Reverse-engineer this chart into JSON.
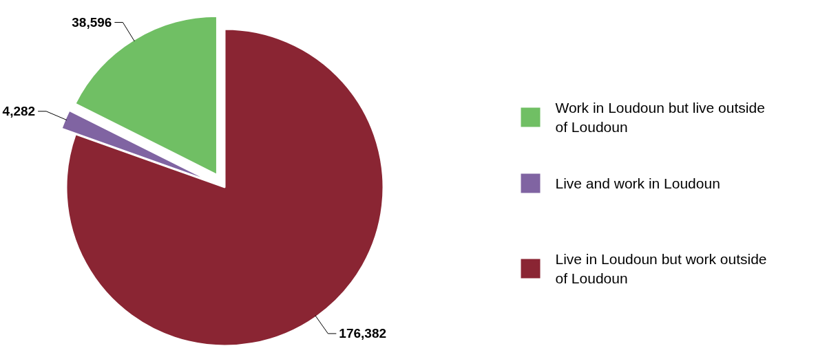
{
  "chart_data": {
    "type": "pie",
    "categories": [
      "Work in Loudoun but live outside of Loudoun",
      "Live and work in Loudoun",
      "Live in Loudoun but work outside of Loudoun"
    ],
    "values": [
      38596,
      4282,
      176382
    ],
    "colors": [
      "#70bf64",
      "#8064a2",
      "#8a2533"
    ],
    "value_labels": [
      "38,596",
      "4,282",
      "176,382"
    ],
    "legend": "right"
  }
}
